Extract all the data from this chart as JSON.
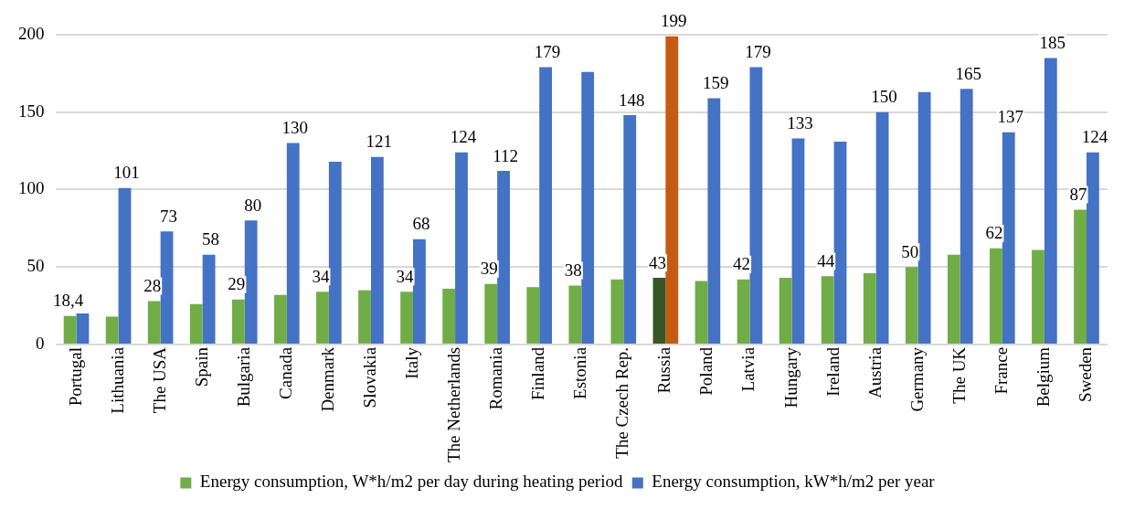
{
  "chart_data": {
    "type": "bar",
    "categories": [
      "Portugal",
      "Lithuania",
      "The USA",
      "Spain",
      "Bulgaria",
      "Canada",
      "Denmark",
      "Slovakia",
      "Italy",
      "The Netherlands",
      "Romania",
      "Finland",
      "Estonia",
      "The Czech Rep.",
      "Russia",
      "Poland",
      "Latvia",
      "Hungary",
      "Ireland",
      "Austria",
      "Germany",
      "The UK",
      "France",
      "Belgium",
      "Sweden"
    ],
    "series": [
      {
        "name": "Energy consumption, W*h/m2 per day during heating period",
        "color": "#70ad47",
        "colors": [
          "#70ad47",
          "#70ad47",
          "#70ad47",
          "#70ad47",
          "#70ad47",
          "#70ad47",
          "#70ad47",
          "#70ad47",
          "#70ad47",
          "#70ad47",
          "#70ad47",
          "#70ad47",
          "#70ad47",
          "#70ad47",
          "#375623",
          "#70ad47",
          "#70ad47",
          "#70ad47",
          "#70ad47",
          "#70ad47",
          "#70ad47",
          "#70ad47",
          "#70ad47",
          "#70ad47",
          "#70ad47"
        ],
        "values": [
          18.4,
          18,
          28,
          26,
          29,
          32,
          34,
          35,
          34,
          36,
          39,
          37,
          38,
          42,
          43,
          41,
          42,
          43,
          44,
          46,
          50,
          58,
          62,
          61,
          87
        ],
        "value_labels": [
          "18,4",
          null,
          "28",
          null,
          "29",
          null,
          "34",
          null,
          "34",
          null,
          "39",
          null,
          "38",
          null,
          "43",
          null,
          "42",
          null,
          "44",
          null,
          "50",
          null,
          "62",
          null,
          "87"
        ]
      },
      {
        "name": "Energy consumption, kW*h/m2 per year",
        "color": "#4472c4",
        "colors": [
          "#4472c4",
          "#4472c4",
          "#4472c4",
          "#4472c4",
          "#4472c4",
          "#4472c4",
          "#4472c4",
          "#4472c4",
          "#4472c4",
          "#4472c4",
          "#4472c4",
          "#4472c4",
          "#4472c4",
          "#4472c4",
          "#c55a11",
          "#4472c4",
          "#4472c4",
          "#4472c4",
          "#4472c4",
          "#4472c4",
          "#4472c4",
          "#4472c4",
          "#4472c4",
          "#4472c4",
          "#4472c4"
        ],
        "values": [
          20,
          101,
          73,
          58,
          80,
          130,
          118,
          121,
          68,
          124,
          112,
          179,
          176,
          148,
          199,
          159,
          179,
          133,
          131,
          150,
          163,
          165,
          137,
          185,
          124
        ],
        "value_labels": [
          null,
          "101",
          "73",
          "58",
          "80",
          "130",
          null,
          "121",
          "68",
          "124",
          "112",
          "179",
          null,
          "148",
          "199",
          "159",
          "179",
          "133",
          null,
          "150",
          null,
          "165",
          "137",
          "185",
          "124"
        ]
      }
    ],
    "ylim": [
      0,
      200
    ],
    "yticks": [
      0,
      50,
      100,
      150,
      200
    ],
    "grid": "y",
    "legend": "bottom"
  }
}
